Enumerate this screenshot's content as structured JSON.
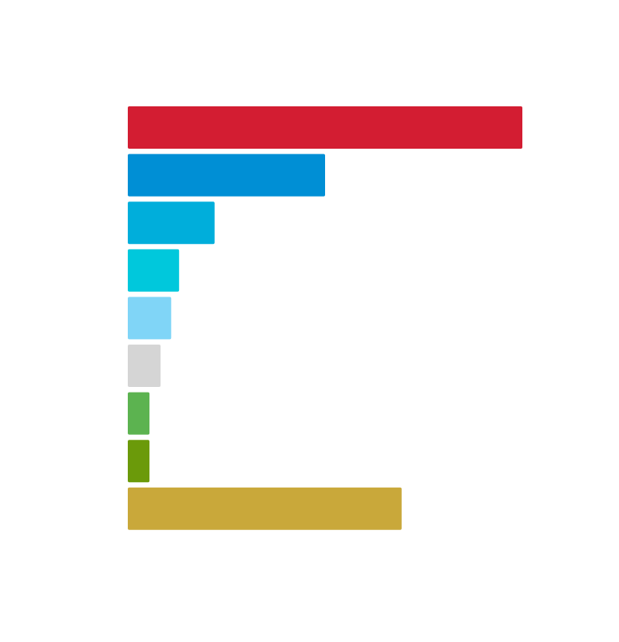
{
  "chart_data": {
    "type": "barh",
    "categories": [
      null,
      null,
      null,
      null,
      null,
      null,
      null,
      null,
      null
    ],
    "values": [
      100,
      50,
      22,
      13,
      11,
      8.3,
      5.5,
      5.5,
      69.4
    ],
    "colors": [
      "#d31d32",
      "#008fd5",
      "#00aedb",
      "#00c8dc",
      "#80d5f7",
      "#d5d5d5",
      "#5cb350",
      "#6b9a0a",
      "#c9a83a"
    ],
    "xlim": [
      0,
      100
    ]
  }
}
